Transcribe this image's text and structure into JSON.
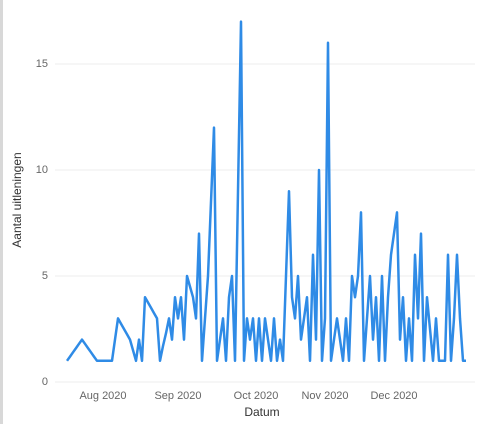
{
  "chart_data": {
    "type": "line",
    "x_label": "Datum",
    "y_label": "Aantal uitleningen",
    "categories": [
      null,
      null,
      null,
      null,
      null,
      null,
      null,
      null,
      null,
      null,
      null,
      null,
      "Aug 2020",
      null,
      null,
      null,
      null,
      null,
      null,
      null,
      null,
      null,
      null,
      null,
      null,
      null,
      null,
      null,
      null,
      null,
      null,
      null,
      null,
      null,
      null,
      null,
      null,
      "Sep 2020",
      null,
      null,
      null,
      null,
      null,
      null,
      null,
      null,
      null,
      null,
      null,
      null,
      null,
      null,
      null,
      null,
      null,
      null,
      null,
      null,
      null,
      null,
      null,
      null,
      null,
      "Oct 2020",
      null,
      null,
      null,
      null,
      null,
      null,
      null,
      null,
      null,
      null,
      null,
      null,
      null,
      null,
      null,
      null,
      null,
      null,
      null,
      null,
      null,
      null,
      "Nov 2020",
      null,
      null,
      null,
      null,
      null,
      null,
      null,
      null,
      null,
      null,
      null,
      null,
      null,
      null,
      null,
      null,
      null,
      null,
      null,
      null,
      null,
      null,
      "Dec 2020",
      null,
      null,
      null,
      null,
      null,
      null,
      null,
      null,
      null,
      null,
      null,
      null,
      null,
      null,
      null,
      null,
      null,
      null,
      null,
      null,
      null,
      null,
      null,
      null
    ],
    "values": [
      1,
      1.2,
      1.4,
      1.6,
      1.8,
      2,
      1.8,
      1.6,
      1.4,
      1.2,
      1,
      1,
      1,
      1,
      1,
      1,
      2,
      3,
      2.75,
      2.5,
      2.25,
      2,
      1.5,
      1,
      2,
      1,
      4,
      3.75,
      3.5,
      3.25,
      3,
      1,
      1.7,
      2.3,
      3,
      2,
      4,
      3,
      4,
      2,
      5,
      4.5,
      4,
      3,
      7,
      1,
      3,
      5,
      8.5,
      12,
      1,
      2,
      3,
      1,
      4,
      5,
      1,
      9,
      17,
      1,
      3,
      2,
      3,
      1,
      3,
      1,
      3,
      2,
      1,
      3,
      1,
      2,
      1,
      5,
      9,
      4,
      3,
      5,
      2,
      3,
      4,
      1,
      6,
      2,
      10,
      1,
      3,
      16,
      1,
      2,
      3,
      2,
      1,
      3,
      1,
      5,
      4,
      5,
      8,
      1,
      3,
      5,
      2,
      4,
      1,
      5,
      1,
      4,
      6,
      7,
      8,
      2,
      4,
      1,
      3,
      1,
      6,
      3,
      7,
      1,
      4,
      2.5,
      1,
      3,
      1,
      1,
      1,
      6,
      1,
      3,
      6,
      3,
      1,
      1
    ],
    "color": "#2f8be6",
    "ylim": [
      0,
      17.5
    ],
    "yticks": [
      0,
      5,
      10,
      15
    ],
    "grid": true
  }
}
